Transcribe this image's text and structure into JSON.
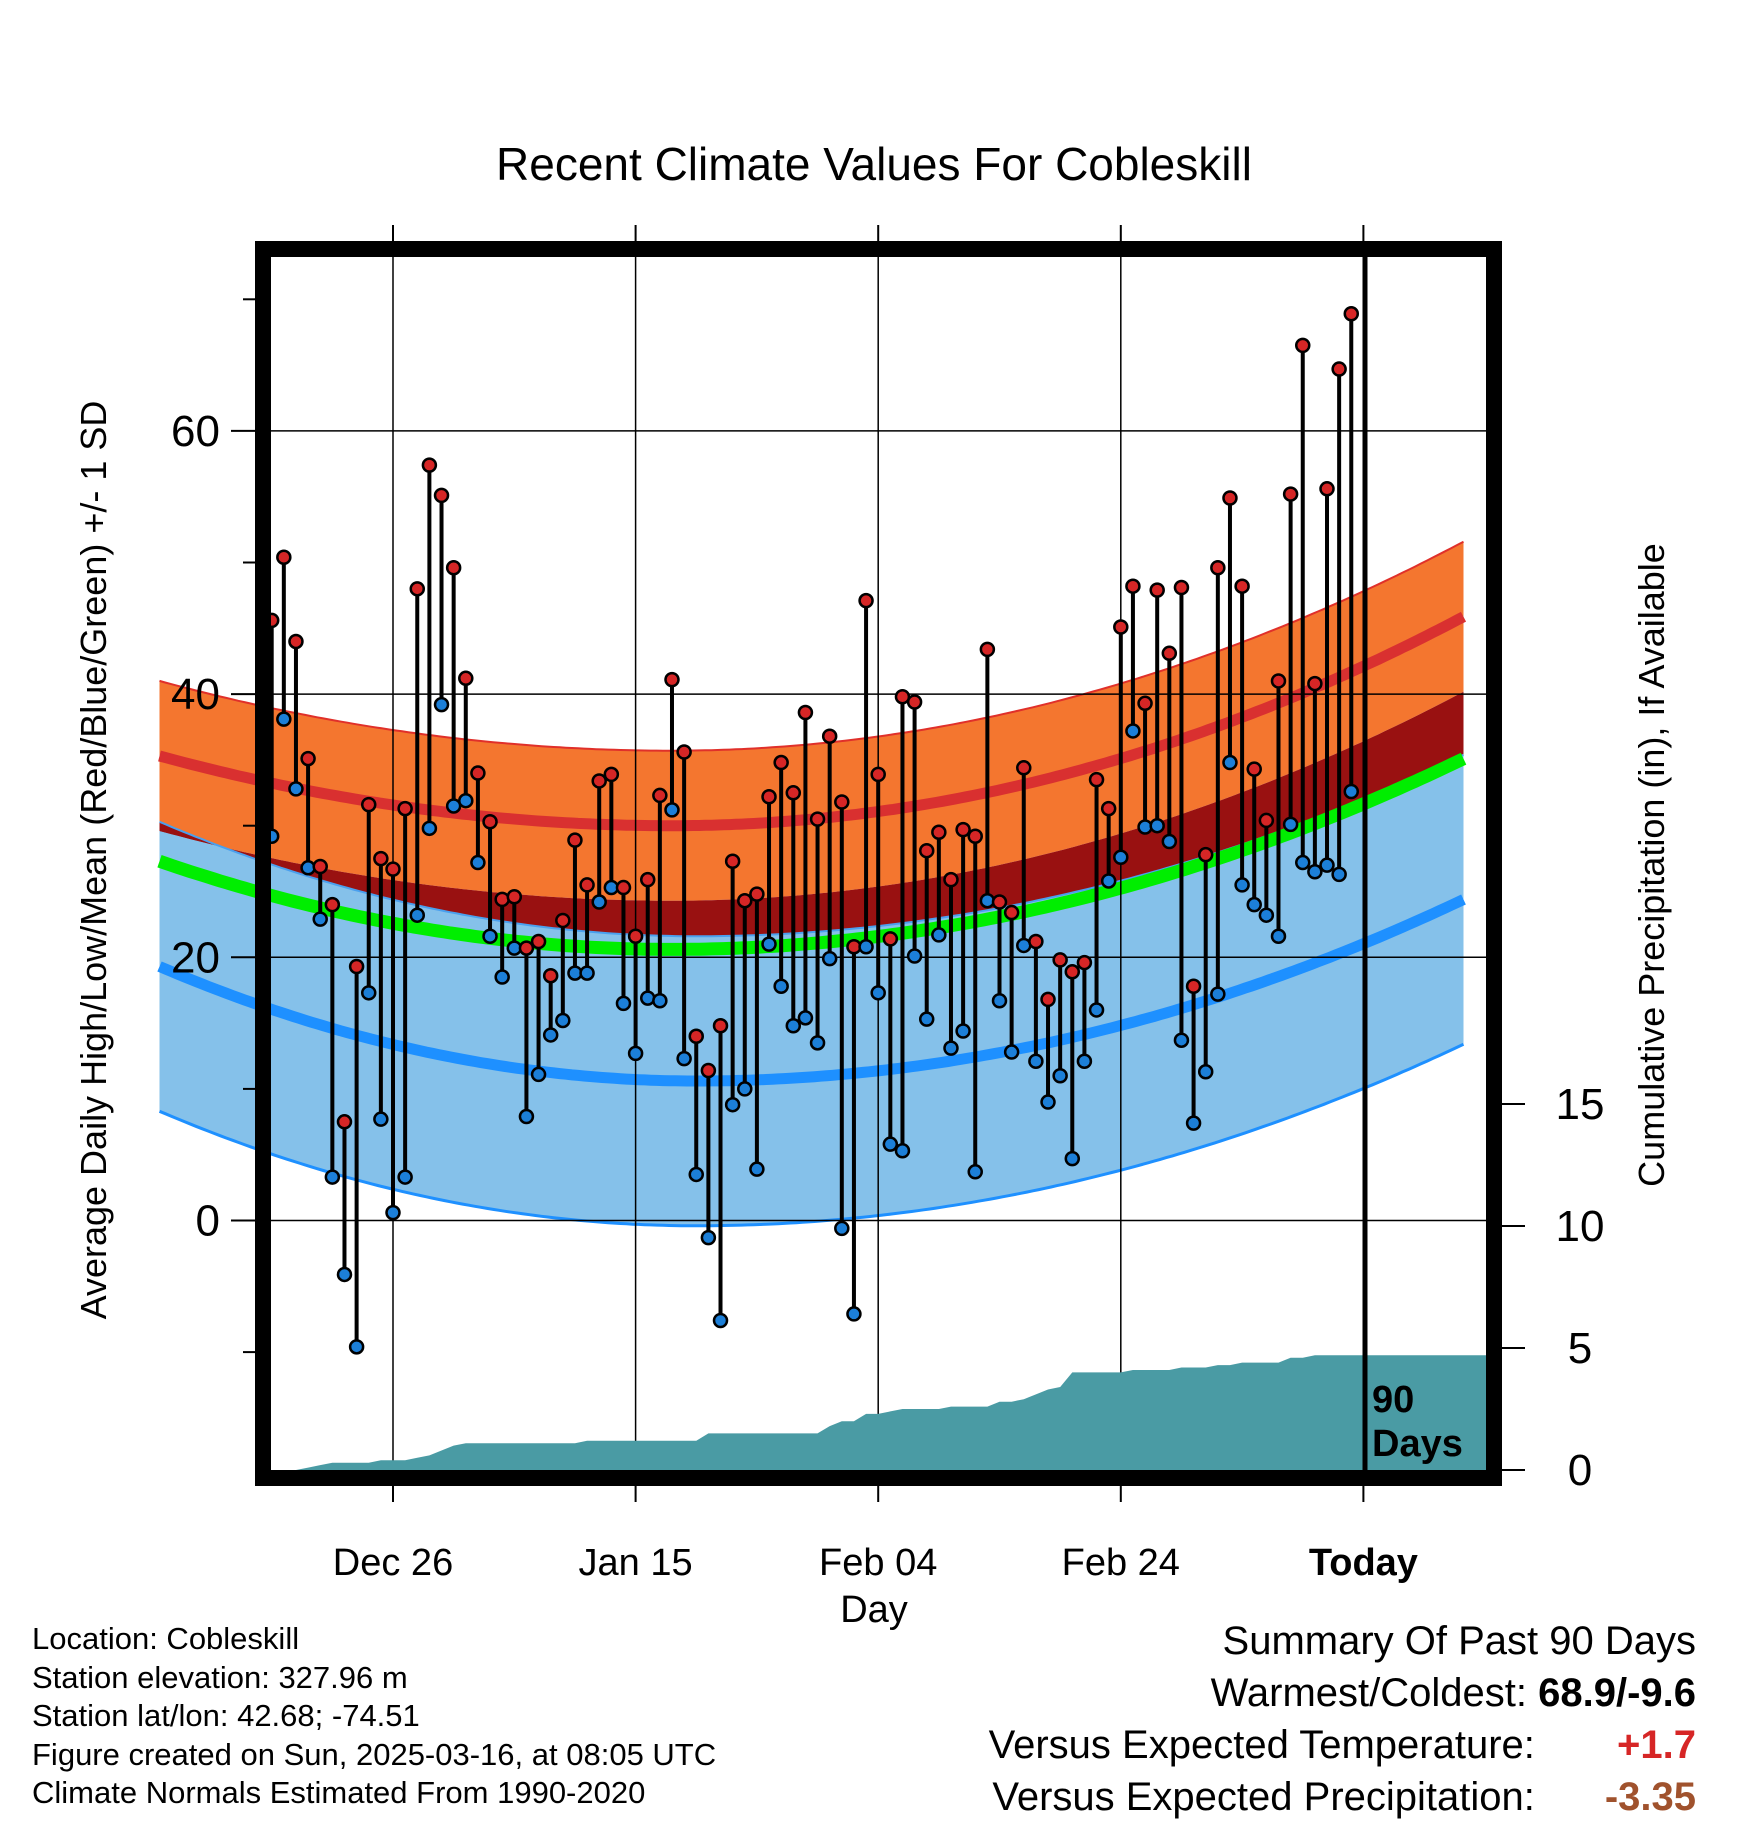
{
  "chart_data": {
    "type": "line",
    "title": "Recent Climate Values For Cobleskill",
    "xlabel": "Day",
    "ylabel": "Average Daily High/Low/Mean (Red/Blue/Green) +/- 1 SD",
    "y2label": "Cumulative Precipitation (in), If Available",
    "xticks": [
      {
        "label": "Dec 26",
        "day": 10
      },
      {
        "label": "Jan 15",
        "day": 30
      },
      {
        "label": "Feb 04",
        "day": 50
      },
      {
        "label": "Feb 24",
        "day": 70
      },
      {
        "label": "Today",
        "day": 90
      }
    ],
    "yticks": [
      0,
      20,
      40,
      60
    ],
    "ylim": [
      -19,
      74
    ],
    "y2ticks": [
      0,
      5,
      10,
      15
    ],
    "today_label": "90 Days",
    "xlim": [
      -10,
      90
    ],
    "grid": true,
    "normals": {
      "high": {
        "mean_start": 35.3,
        "mean_min": 30.0,
        "mean_min_day": 33,
        "mean_end": 46.0,
        "sd": 5.7
      },
      "low": {
        "mean_start": 19.3,
        "mean_min": 10.6,
        "mean_min_day": 35,
        "mean_end": 24.5,
        "sd": 11.0
      },
      "mean": {
        "mean_start": 27.3,
        "mean_min": 20.6,
        "mean_min_day": 33,
        "mean_end": 35.2
      }
    },
    "series": [
      {
        "name": "High",
        "values": [
          45.6,
          50.4,
          44.0,
          35.1,
          26.9,
          24.0,
          7.5,
          19.3,
          31.6,
          27.5,
          26.7,
          31.3,
          48.0,
          57.4,
          55.1,
          49.6,
          41.2,
          34.0,
          30.3,
          24.4,
          24.6,
          20.7,
          21.2,
          18.6,
          22.8,
          28.9,
          25.5,
          33.4,
          33.9,
          25.3,
          21.6,
          25.9,
          32.3,
          41.1,
          35.6,
          14.0,
          11.4,
          14.8,
          27.3,
          24.3,
          24.8,
          32.2,
          34.8,
          32.5,
          38.6,
          30.5,
          36.8,
          31.8,
          20.8,
          47.1,
          33.9,
          21.4,
          39.8,
          39.4,
          28.1,
          29.5,
          25.9,
          29.7,
          29.2,
          43.4,
          24.2,
          23.4,
          34.4,
          21.2,
          16.8,
          19.8,
          18.9,
          19.6,
          33.5,
          31.3,
          45.1,
          48.2,
          39.3,
          47.9,
          43.1,
          48.1,
          17.8,
          27.8,
          49.6,
          54.9,
          48.2,
          34.3,
          30.4,
          41.0,
          55.2,
          66.5,
          40.8,
          55.6,
          64.7,
          68.9
        ]
      },
      {
        "name": "Low",
        "values": [
          29.2,
          38.1,
          32.8,
          26.8,
          22.9,
          3.3,
          -4.1,
          -9.6,
          17.3,
          7.7,
          0.6,
          3.3,
          23.2,
          29.8,
          39.2,
          31.5,
          31.9,
          27.2,
          21.6,
          18.5,
          20.7,
          7.9,
          11.1,
          14.1,
          15.2,
          18.8,
          18.8,
          24.2,
          25.3,
          16.5,
          12.7,
          16.9,
          16.7,
          31.2,
          12.3,
          3.5,
          -1.3,
          -7.6,
          8.8,
          10.0,
          3.9,
          21.0,
          17.8,
          14.8,
          15.4,
          13.5,
          19.9,
          -0.6,
          -7.1,
          20.8,
          17.3,
          5.8,
          5.3,
          20.1,
          15.3,
          21.7,
          13.1,
          14.4,
          3.7,
          24.3,
          16.7,
          12.8,
          20.9,
          12.1,
          9.0,
          11.0,
          4.7,
          12.1,
          16.0,
          25.8,
          27.6,
          37.2,
          29.9,
          30.0,
          28.8,
          13.7,
          7.4,
          11.3,
          17.2,
          34.8,
          25.5,
          24.0,
          23.2,
          21.6,
          30.1,
          27.2,
          26.5,
          27.0,
          26.3,
          32.6
        ]
      },
      {
        "name": "Cumulative Precipitation",
        "values": [
          0.0,
          0.0,
          0.0,
          0.1,
          0.2,
          0.3,
          0.3,
          0.3,
          0.3,
          0.4,
          0.4,
          0.4,
          0.5,
          0.6,
          0.8,
          1.0,
          1.1,
          1.1,
          1.1,
          1.1,
          1.1,
          1.1,
          1.1,
          1.1,
          1.1,
          1.1,
          1.2,
          1.2,
          1.2,
          1.2,
          1.2,
          1.2,
          1.2,
          1.2,
          1.2,
          1.2,
          1.5,
          1.5,
          1.5,
          1.5,
          1.5,
          1.5,
          1.5,
          1.5,
          1.5,
          1.5,
          1.8,
          2.0,
          2.0,
          2.3,
          2.3,
          2.4,
          2.5,
          2.5,
          2.5,
          2.5,
          2.6,
          2.6,
          2.6,
          2.6,
          2.8,
          2.8,
          2.9,
          3.1,
          3.3,
          3.4,
          4.0,
          4.0,
          4.0,
          4.0,
          4.0,
          4.1,
          4.1,
          4.1,
          4.1,
          4.2,
          4.2,
          4.2,
          4.3,
          4.3,
          4.4,
          4.4,
          4.4,
          4.4,
          4.6,
          4.6,
          4.7,
          4.7,
          4.7,
          4.7
        ]
      }
    ]
  },
  "info": {
    "location": "Location: Cobleskill",
    "elevation": "Station elevation: 327.96 m",
    "latlon": "Station lat/lon: 42.68; -74.51",
    "created": "Figure created on Sun, 2025-03-16, at 08:05 UTC",
    "normals": "Climate Normals Estimated From 1990-2020"
  },
  "summary": {
    "header": "Summary Of Past 90 Days",
    "warmest_label": "Warmest/Coldest:",
    "warmest_value": "68.9/-9.6",
    "temp_label": "Versus Expected Temperature:",
    "temp_value": "+1.7",
    "precip_label": "Versus Expected Precipitation:",
    "precip_value": "-3.35"
  },
  "colors": {
    "high_band": "#f4762f",
    "high_mean": "#d93030",
    "low_band": "#85c1ea",
    "low_mean": "#1e90ff",
    "mean_line": "#00ee00",
    "overlap": "#991111",
    "precip_fill": "#4a9ba4",
    "high_point": "#d62626",
    "low_point": "#1c7fd8"
  }
}
